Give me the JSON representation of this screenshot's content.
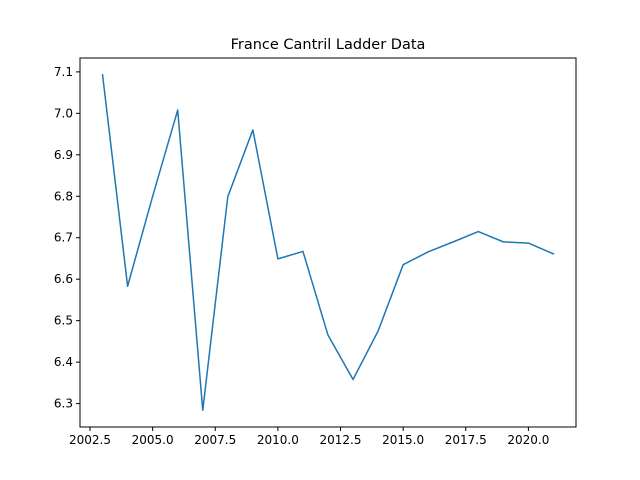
{
  "chart_data": {
    "type": "line",
    "title": "France Cantril Ladder Data",
    "xlabel": "",
    "ylabel": "",
    "xlim": [
      2002.1,
      2021.9
    ],
    "ylim": [
      6.2435,
      7.1335
    ],
    "x_ticks": [
      2002.5,
      2005.0,
      2007.5,
      2010.0,
      2012.5,
      2015.0,
      2017.5,
      2020.0
    ],
    "x_tick_labels": [
      "2002.5",
      "2005.0",
      "2007.5",
      "2010.0",
      "2012.5",
      "2015.0",
      "2017.5",
      "2020.0"
    ],
    "y_ticks": [
      6.3,
      6.4,
      6.5,
      6.6,
      6.7,
      6.8,
      6.9,
      7.0,
      7.1
    ],
    "y_tick_labels": [
      "6.3",
      "6.4",
      "6.5",
      "6.6",
      "6.7",
      "6.8",
      "6.9",
      "7.0",
      "7.1"
    ],
    "grid": false,
    "legend": "none",
    "series": [
      {
        "color": "#1f77b4",
        "x": [
          2003,
          2004,
          2005,
          2006,
          2007,
          2008,
          2009,
          2010,
          2011,
          2012,
          2013,
          2014,
          2015,
          2016,
          2017,
          2018,
          2019,
          2020,
          2021
        ],
        "y": [
          7.093,
          6.583,
          6.8,
          7.008,
          6.284,
          6.799,
          6.96,
          6.649,
          6.667,
          6.465,
          6.358,
          6.475,
          6.635,
          6.666,
          6.69,
          6.715,
          6.69,
          6.687,
          6.661
        ]
      }
    ]
  }
}
